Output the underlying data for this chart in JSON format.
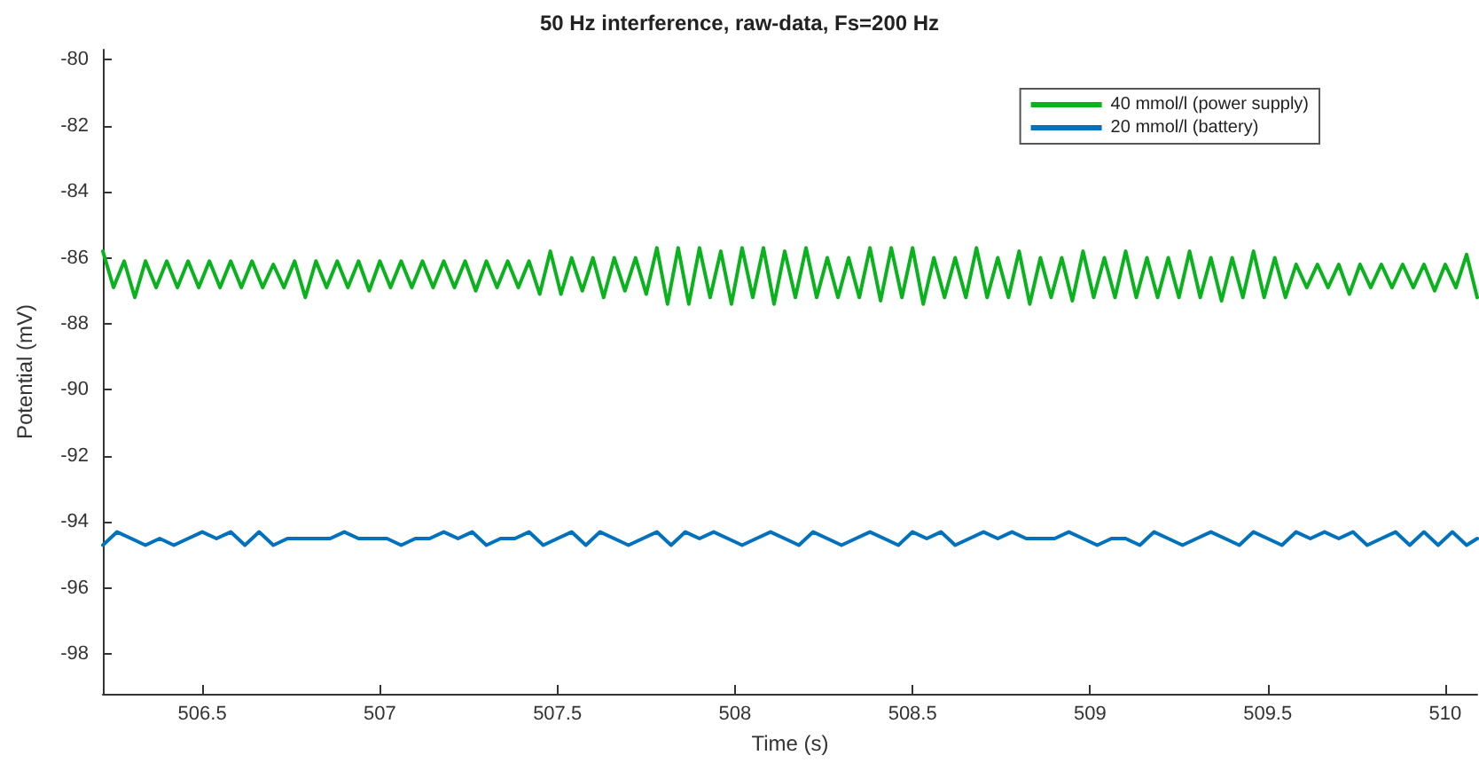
{
  "chart_data": {
    "type": "line",
    "title": "50 Hz interference, raw-data, Fs=200 Hz",
    "xlabel": "Time (s)",
    "ylabel": "Potential (mV)",
    "xlim": [
      506.22,
      510.09
    ],
    "xticks": [
      506.5,
      507,
      507.5,
      508,
      508.5,
      509,
      509.5,
      510
    ],
    "ylim": [
      -99.2,
      -79.7
    ],
    "yticks": [
      -98,
      -96,
      -94,
      -92,
      -90,
      -88,
      -86,
      -84,
      -82,
      -80
    ],
    "grid": false,
    "legend": "top right",
    "line_style": "solid",
    "series": [
      {
        "name": "40 mmol/l (power supply)",
        "color": "#0ab21e",
        "x": [
          506.22,
          506.25,
          506.28,
          506.31,
          506.34,
          506.37,
          506.4,
          506.43,
          506.46,
          506.49,
          506.52,
          506.55,
          506.58,
          506.61,
          506.64,
          506.67,
          506.7,
          506.73,
          506.76,
          506.79,
          506.82,
          506.85,
          506.88,
          506.91,
          506.94,
          506.97,
          507,
          507.03,
          507.06,
          507.09,
          507.12,
          507.15,
          507.18,
          507.21,
          507.24,
          507.27,
          507.3,
          507.33,
          507.36,
          507.39,
          507.42,
          507.45,
          507.48,
          507.51,
          507.54,
          507.57,
          507.6,
          507.63,
          507.66,
          507.69,
          507.72,
          507.75,
          507.78,
          507.81,
          507.84,
          507.87,
          507.9,
          507.93,
          507.96,
          507.99,
          508.02,
          508.05,
          508.08,
          508.11,
          508.14,
          508.17,
          508.2,
          508.23,
          508.26,
          508.29,
          508.32,
          508.35,
          508.38,
          508.41,
          508.44,
          508.47,
          508.5,
          508.53,
          508.56,
          508.59,
          508.62,
          508.65,
          508.68,
          508.71,
          508.74,
          508.77,
          508.8,
          508.83,
          508.86,
          508.89,
          508.92,
          508.95,
          508.98,
          509.01,
          509.04,
          509.07,
          509.1,
          509.13,
          509.16,
          509.19,
          509.22,
          509.25,
          509.28,
          509.31,
          509.34,
          509.37,
          509.4,
          509.43,
          509.46,
          509.49,
          509.52,
          509.55,
          509.58,
          509.61,
          509.64,
          509.67,
          509.7,
          509.73,
          509.76,
          509.79,
          509.82,
          509.85,
          509.88,
          509.91,
          509.94,
          509.97,
          510,
          510.03,
          510.06,
          510.09
        ],
        "values": [
          -85.8,
          -86.9,
          -86.1,
          -87.2,
          -86.1,
          -86.9,
          -86.1,
          -86.9,
          -86.1,
          -86.9,
          -86.1,
          -86.9,
          -86.1,
          -86.9,
          -86.1,
          -86.9,
          -86.2,
          -86.9,
          -86.1,
          -87.2,
          -86.1,
          -86.9,
          -86.1,
          -86.9,
          -86.1,
          -87.0,
          -86.1,
          -86.9,
          -86.1,
          -86.9,
          -86.1,
          -86.9,
          -86.1,
          -86.9,
          -86.1,
          -87.0,
          -86.1,
          -86.9,
          -86.1,
          -86.9,
          -86.1,
          -87.1,
          -85.8,
          -87.1,
          -86.0,
          -87.0,
          -86.0,
          -87.2,
          -86.0,
          -87.0,
          -86.0,
          -87.1,
          -85.7,
          -87.4,
          -85.7,
          -87.4,
          -85.7,
          -87.2,
          -85.8,
          -87.4,
          -85.7,
          -87.2,
          -85.7,
          -87.4,
          -85.8,
          -87.2,
          -85.7,
          -87.2,
          -86.0,
          -87.2,
          -86.0,
          -87.2,
          -85.7,
          -87.3,
          -85.7,
          -87.2,
          -85.7,
          -87.4,
          -86.0,
          -87.2,
          -86.0,
          -87.2,
          -85.7,
          -87.2,
          -86.0,
          -87.2,
          -85.8,
          -87.4,
          -86.0,
          -87.2,
          -86.0,
          -87.3,
          -85.8,
          -87.2,
          -86.0,
          -87.2,
          -85.8,
          -87.2,
          -86.0,
          -87.2,
          -86.0,
          -87.2,
          -85.8,
          -87.2,
          -86.0,
          -87.3,
          -86.0,
          -87.2,
          -85.8,
          -87.2,
          -86.0,
          -87.2,
          -86.2,
          -86.9,
          -86.2,
          -86.9,
          -86.2,
          -87.1,
          -86.2,
          -86.9,
          -86.2,
          -86.9,
          -86.2,
          -86.9,
          -86.2,
          -87.0,
          -86.2,
          -86.9,
          -85.9,
          -87.2
        ]
      },
      {
        "name": "20 mmol/l (battery)",
        "color": "#0072bd",
        "x": [
          506.22,
          506.26,
          506.3,
          506.34,
          506.38,
          506.42,
          506.46,
          506.5,
          506.54,
          506.58,
          506.62,
          506.66,
          506.7,
          506.74,
          506.78,
          506.82,
          506.86,
          506.9,
          506.94,
          506.98,
          507.02,
          507.06,
          507.1,
          507.14,
          507.18,
          507.22,
          507.26,
          507.3,
          507.34,
          507.38,
          507.42,
          507.46,
          507.5,
          507.54,
          507.58,
          507.62,
          507.66,
          507.7,
          507.74,
          507.78,
          507.82,
          507.86,
          507.9,
          507.94,
          507.98,
          508.02,
          508.06,
          508.1,
          508.14,
          508.18,
          508.22,
          508.26,
          508.3,
          508.34,
          508.38,
          508.42,
          508.46,
          508.5,
          508.54,
          508.58,
          508.62,
          508.66,
          508.7,
          508.74,
          508.78,
          508.82,
          508.86,
          508.9,
          508.94,
          508.98,
          509.02,
          509.06,
          509.1,
          509.14,
          509.18,
          509.22,
          509.26,
          509.3,
          509.34,
          509.38,
          509.42,
          509.46,
          509.5,
          509.54,
          509.58,
          509.62,
          509.66,
          509.7,
          509.74,
          509.78,
          509.82,
          509.86,
          509.9,
          509.94,
          509.98,
          510.02,
          510.06,
          510.09
        ],
        "values": [
          -94.7,
          -94.3,
          -94.5,
          -94.7,
          -94.5,
          -94.7,
          -94.5,
          -94.3,
          -94.5,
          -94.3,
          -94.7,
          -94.3,
          -94.7,
          -94.5,
          -94.5,
          -94.5,
          -94.5,
          -94.3,
          -94.5,
          -94.5,
          -94.5,
          -94.7,
          -94.5,
          -94.5,
          -94.3,
          -94.5,
          -94.3,
          -94.7,
          -94.5,
          -94.5,
          -94.3,
          -94.7,
          -94.5,
          -94.3,
          -94.7,
          -94.3,
          -94.5,
          -94.7,
          -94.5,
          -94.3,
          -94.7,
          -94.3,
          -94.5,
          -94.3,
          -94.5,
          -94.7,
          -94.5,
          -94.3,
          -94.5,
          -94.7,
          -94.3,
          -94.5,
          -94.7,
          -94.5,
          -94.3,
          -94.5,
          -94.7,
          -94.3,
          -94.5,
          -94.3,
          -94.7,
          -94.5,
          -94.3,
          -94.5,
          -94.3,
          -94.5,
          -94.5,
          -94.5,
          -94.3,
          -94.5,
          -94.7,
          -94.5,
          -94.5,
          -94.7,
          -94.3,
          -94.5,
          -94.7,
          -94.5,
          -94.3,
          -94.5,
          -94.7,
          -94.3,
          -94.5,
          -94.7,
          -94.3,
          -94.5,
          -94.3,
          -94.5,
          -94.3,
          -94.7,
          -94.5,
          -94.3,
          -94.7,
          -94.3,
          -94.7,
          -94.3,
          -94.7,
          -94.5
        ]
      }
    ]
  }
}
